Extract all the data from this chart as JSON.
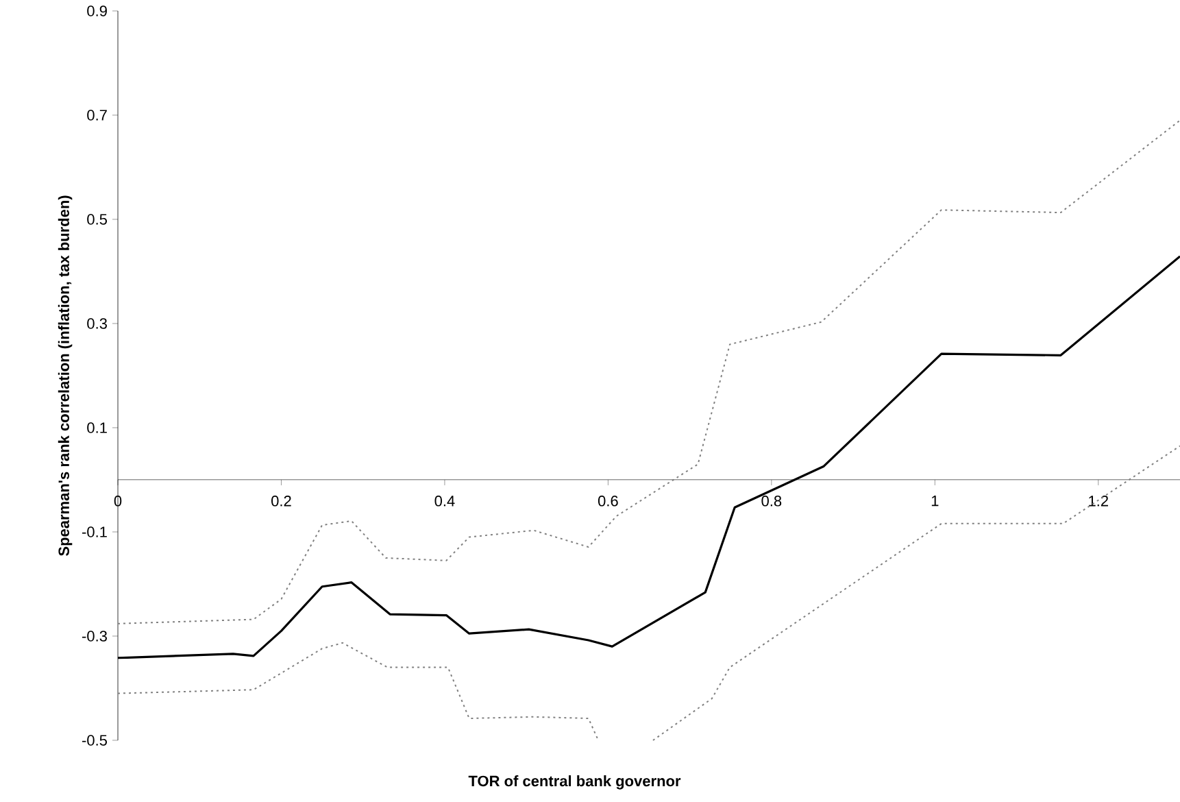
{
  "chart_data": {
    "type": "line",
    "xlabel": "TOR of central bank governor",
    "ylabel": "Spearman's rank correlation (inflation, tax burden)",
    "xlim": [
      0,
      1.3
    ],
    "ylim": [
      -0.5,
      0.9
    ],
    "xticks": [
      0,
      0.2,
      0.4,
      0.6,
      0.8,
      1,
      1.2
    ],
    "yticks": [
      0.9,
      0.7,
      0.5,
      0.3,
      0.1,
      -0.1,
      -0.3,
      -0.5
    ],
    "grid": false,
    "series": [
      {
        "color": "#000000",
        "line_style": "solid",
        "x": [
          0,
          0.141,
          0.166,
          0.2,
          0.25,
          0.286,
          0.333,
          0.402,
          0.43,
          0.503,
          0.576,
          0.605,
          0.719,
          0.755,
          0.864,
          1.008,
          1.154,
          1.3
        ],
        "values": [
          -0.342,
          -0.334,
          -0.338,
          -0.29,
          -0.205,
          -0.197,
          -0.258,
          -0.26,
          -0.295,
          -0.287,
          -0.308,
          -0.32,
          -0.216,
          -0.053,
          0.026,
          0.242,
          0.239,
          0.429
        ]
      },
      {
        "color": "#808080",
        "line_style": "dotted",
        "x": [
          0,
          0.166,
          0.2,
          0.25,
          0.286,
          0.328,
          0.402,
          0.43,
          0.509,
          0.576,
          0.61,
          0.71,
          0.749,
          0.861,
          1.008,
          1.154,
          1.3
        ],
        "values": [
          -0.276,
          -0.268,
          -0.229,
          -0.087,
          -0.079,
          -0.15,
          -0.155,
          -0.11,
          -0.097,
          -0.129,
          -0.07,
          0.03,
          0.26,
          0.303,
          0.518,
          0.513,
          0.69
        ]
      },
      {
        "color": "#808080",
        "line_style": "dotted",
        "x": [
          0,
          0.166,
          0.25,
          0.275,
          0.33,
          0.404,
          0.43,
          0.509,
          0.576,
          0.588,
          0.62,
          0.655,
          0.727,
          0.749,
          1.008,
          1.157,
          1.3
        ],
        "values": [
          -0.41,
          -0.403,
          -0.324,
          -0.313,
          -0.36,
          -0.36,
          -0.458,
          -0.455,
          -0.458,
          -0.5,
          null,
          -0.5,
          -0.42,
          -0.36,
          -0.084,
          -0.084,
          0.065
        ]
      }
    ]
  }
}
